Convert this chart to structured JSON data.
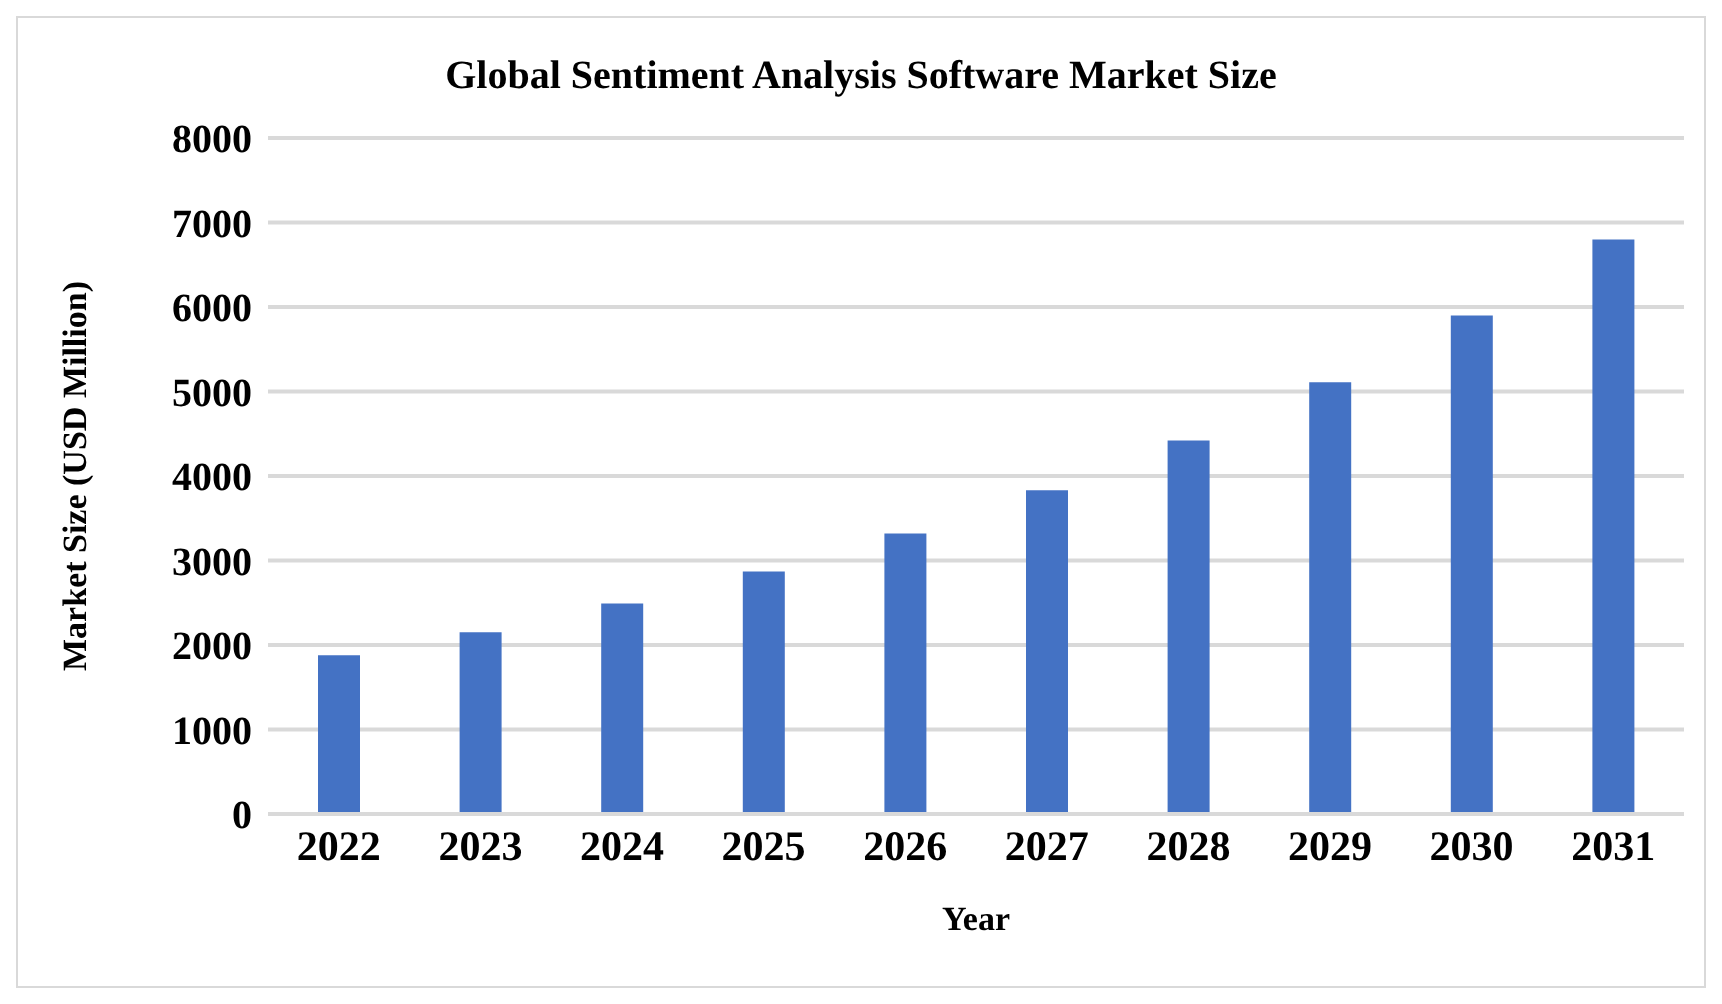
{
  "chart_data": {
    "type": "bar",
    "title": "Global Sentiment Analysis Software Market Size",
    "xlabel": "Year",
    "ylabel": "Market Size (USD Million)",
    "categories": [
      "2022",
      "2023",
      "2024",
      "2025",
      "2026",
      "2027",
      "2028",
      "2029",
      "2030",
      "2031"
    ],
    "values": [
      1880,
      2150,
      2490,
      2870,
      3320,
      3830,
      4420,
      5110,
      5900,
      6800
    ],
    "color": "#4472c4",
    "ylim": [
      0,
      8000
    ],
    "yticks": [
      0,
      1000,
      2000,
      3000,
      4000,
      5000,
      6000,
      7000,
      8000
    ],
    "grid": "y",
    "legend": false
  }
}
